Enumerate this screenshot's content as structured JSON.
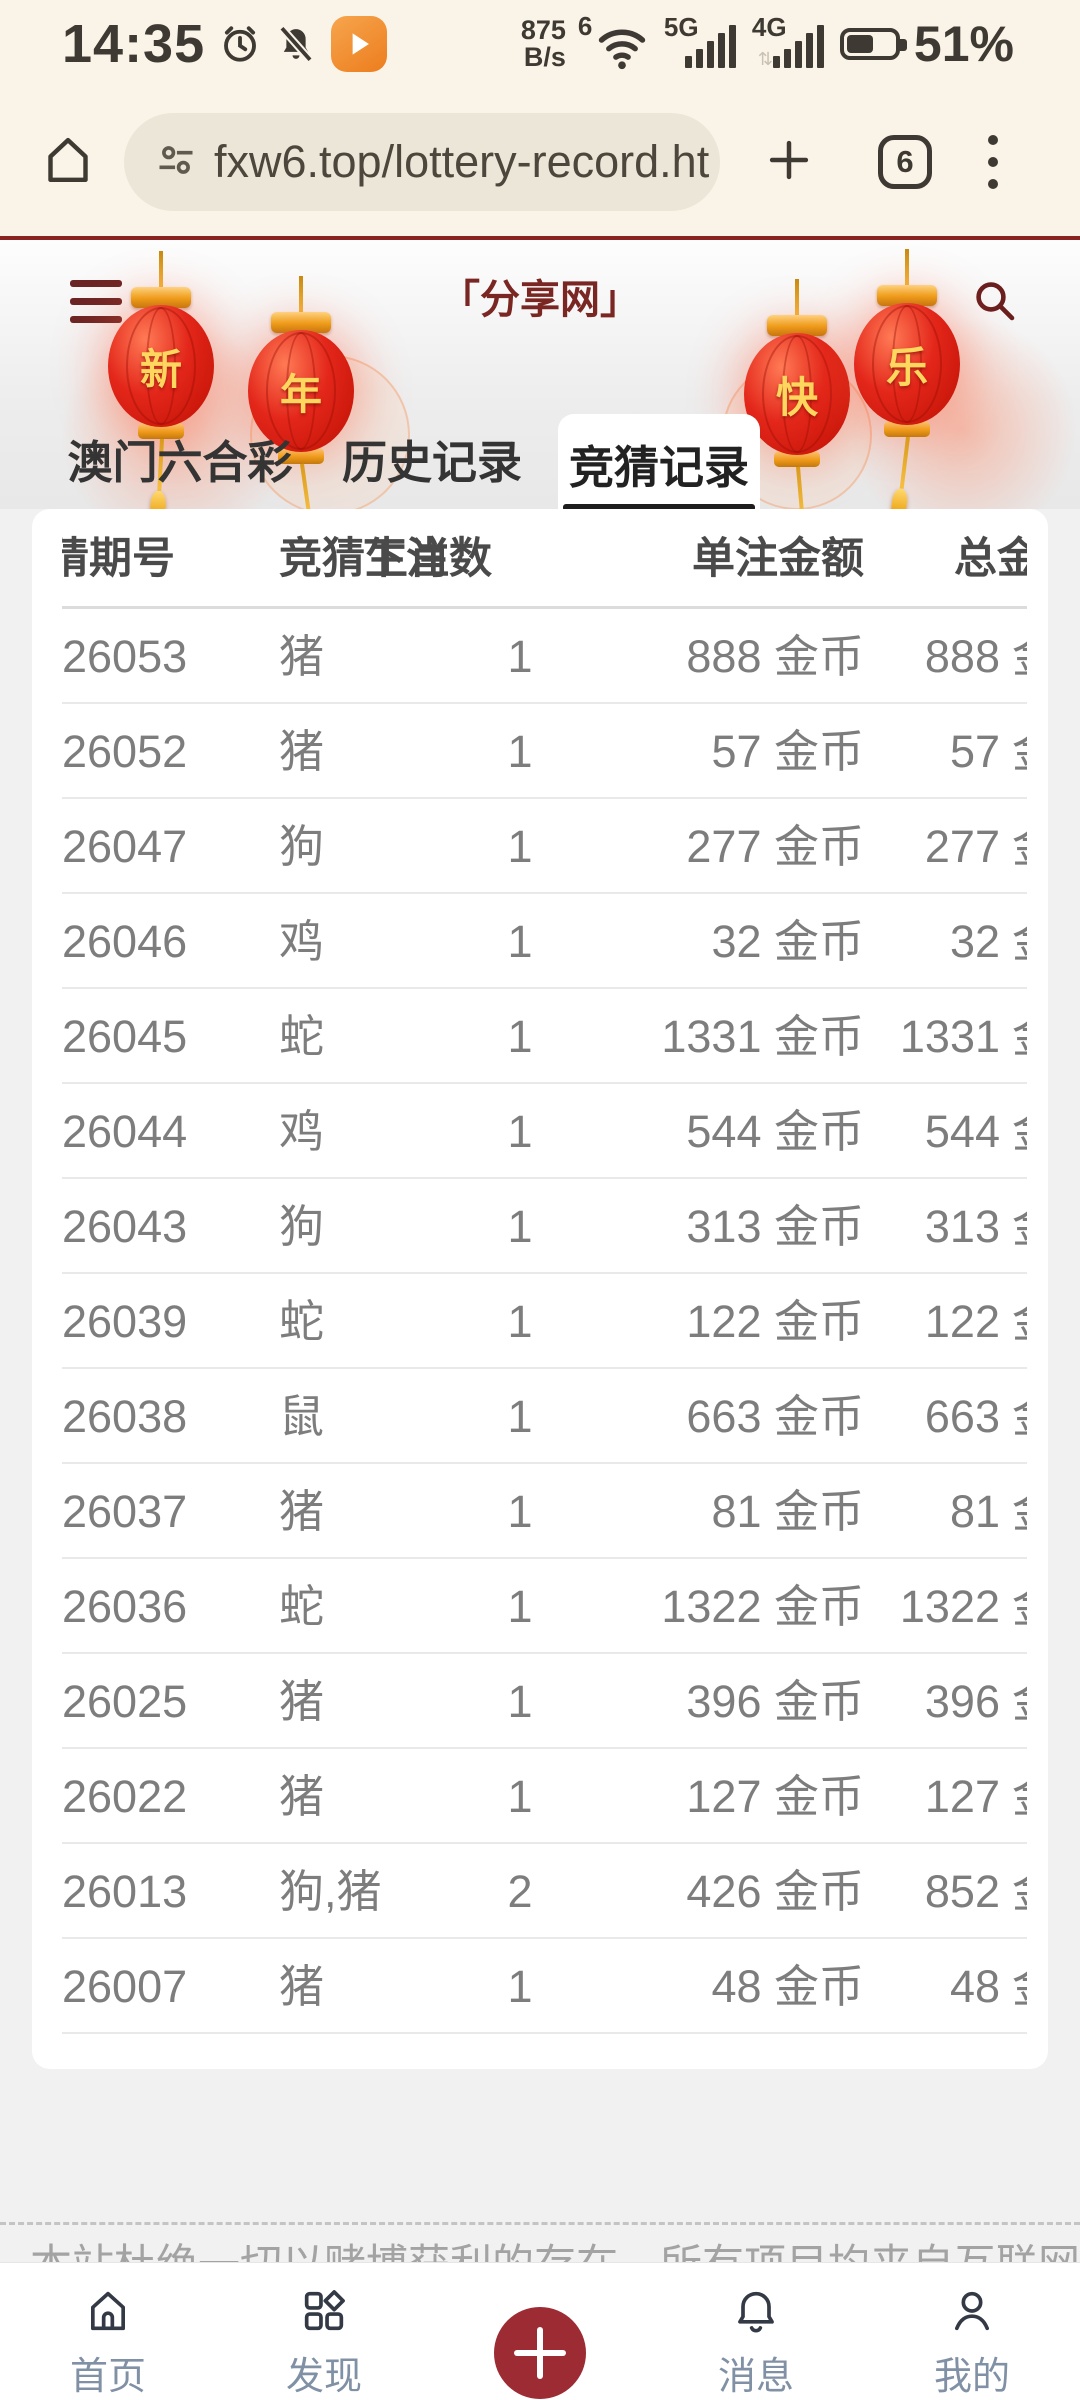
{
  "status_bar": {
    "time": "14:35",
    "network_speed_value": "875",
    "network_speed_unit": "B/s",
    "wifi_badge": "6",
    "net_primary": "5G",
    "net_secondary": "4G",
    "battery_percent": "51%"
  },
  "browser": {
    "url": "fxw6.top/lottery-record.ht",
    "tab_count": "6"
  },
  "site_header": {
    "title": "「分享网」",
    "lanterns": [
      "新",
      "年",
      "快",
      "乐"
    ]
  },
  "tabs": [
    {
      "label": "澳门六合彩",
      "active": false
    },
    {
      "label": "历史记录",
      "active": false
    },
    {
      "label": "竞猜记录",
      "active": true
    }
  ],
  "table": {
    "headers": {
      "col1": "竞猜期号",
      "col2": "竞猜生肖",
      "col3": "下注数",
      "col4": "单注金额",
      "col5": "总金额"
    },
    "unit": "金币",
    "rows": [
      {
        "period": "26053",
        "zodiac": "猪",
        "bets": "1",
        "amount": "888",
        "total": "888"
      },
      {
        "period": "26052",
        "zodiac": "猪",
        "bets": "1",
        "amount": "57",
        "total": "57"
      },
      {
        "period": "26047",
        "zodiac": "狗",
        "bets": "1",
        "amount": "277",
        "total": "277"
      },
      {
        "period": "26046",
        "zodiac": "鸡",
        "bets": "1",
        "amount": "32",
        "total": "32"
      },
      {
        "period": "26045",
        "zodiac": "蛇",
        "bets": "1",
        "amount": "1331",
        "total": "1331"
      },
      {
        "period": "26044",
        "zodiac": "鸡",
        "bets": "1",
        "amount": "544",
        "total": "544"
      },
      {
        "period": "26043",
        "zodiac": "狗",
        "bets": "1",
        "amount": "313",
        "total": "313"
      },
      {
        "period": "26039",
        "zodiac": "蛇",
        "bets": "1",
        "amount": "122",
        "total": "122"
      },
      {
        "period": "26038",
        "zodiac": "鼠",
        "bets": "1",
        "amount": "663",
        "total": "663"
      },
      {
        "period": "26037",
        "zodiac": "猪",
        "bets": "1",
        "amount": "81",
        "total": "81"
      },
      {
        "period": "26036",
        "zodiac": "蛇",
        "bets": "1",
        "amount": "1322",
        "total": "1322"
      },
      {
        "period": "26025",
        "zodiac": "猪",
        "bets": "1",
        "amount": "396",
        "total": "396"
      },
      {
        "period": "26022",
        "zodiac": "猪",
        "bets": "1",
        "amount": "127",
        "total": "127"
      },
      {
        "period": "26013",
        "zodiac": "狗,猪",
        "bets": "2",
        "amount": "426",
        "total": "852"
      },
      {
        "period": "26007",
        "zodiac": "猪",
        "bets": "1",
        "amount": "48",
        "total": "48"
      }
    ]
  },
  "footer": {
    "disclaimer": "本站杜绝一切以赌博获利的存在，所有项目均来自互联网转载，收录内容真实"
  },
  "bottom_nav": {
    "items": [
      {
        "label": "首页"
      },
      {
        "label": "发现"
      },
      {
        "label": "消息"
      },
      {
        "label": "我的"
      }
    ]
  },
  "colors": {
    "accent_red": "#9C2B33",
    "title_red": "#7A2622",
    "lantern_red": "#E3261A",
    "gold": "#F0A32A",
    "cream": "#FAF3E7"
  }
}
